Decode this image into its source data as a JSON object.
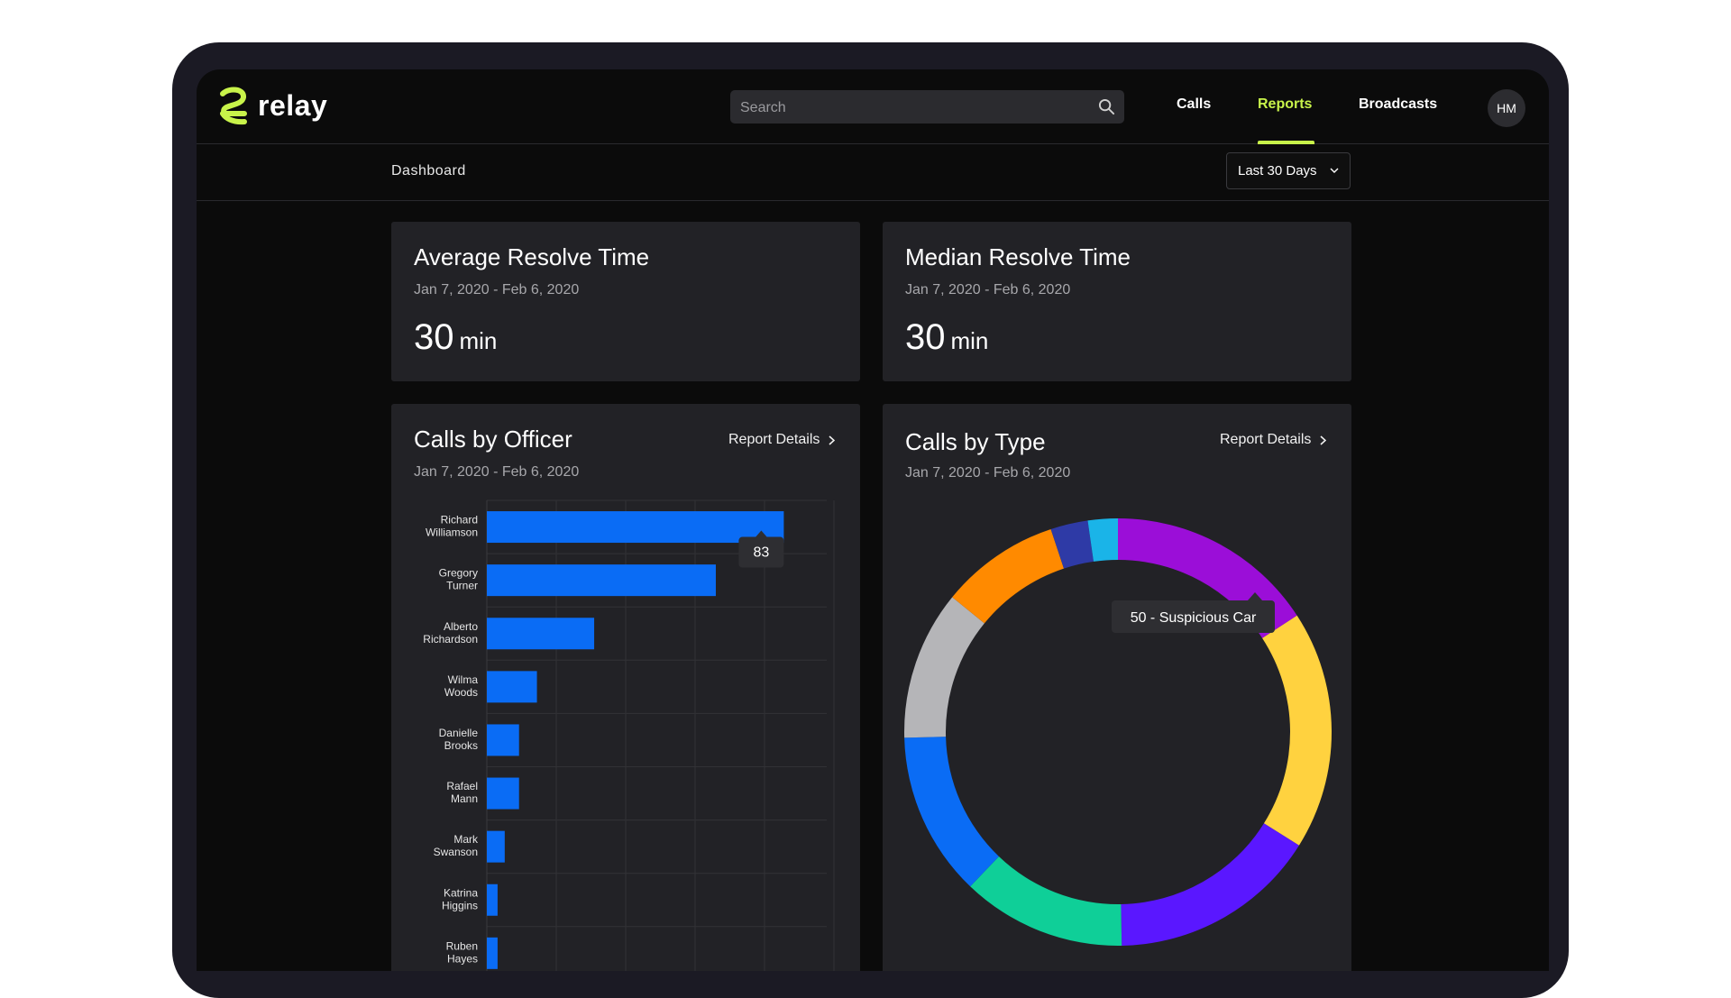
{
  "app": {
    "logo_text": "relay",
    "brand_color": "#c8f34a",
    "search_placeholder": "Search",
    "nav": {
      "calls": "Calls",
      "reports": "Reports",
      "broadcasts": "Broadcasts",
      "active": "reports"
    },
    "avatar_initials": "HM"
  },
  "subnav": {
    "breadcrumb": "Dashboard",
    "range_selected": "Last 30 Days"
  },
  "cards": {
    "avg": {
      "title": "Average Resolve Time",
      "date_range": "Jan 7, 2020 - Feb 6, 2020",
      "value": "30",
      "unit": "min"
    },
    "median": {
      "title": "Median Resolve Time",
      "date_range": "Jan 7, 2020 - Feb 6, 2020",
      "value": "30",
      "unit": "min"
    },
    "officer": {
      "title": "Calls by Officer",
      "date_range": "Jan 7, 2020 - Feb 6, 2020",
      "link": "Report Details"
    },
    "type": {
      "title": "Calls by Type",
      "date_range": "Jan 7, 2020 - Feb 6, 2020",
      "link": "Report Details"
    }
  },
  "chart_data": [
    {
      "type": "bar",
      "orientation": "horizontal",
      "categories": [
        [
          "Richard",
          "Williamson"
        ],
        [
          "Gregory",
          "Turner"
        ],
        [
          "Alberto",
          "Richardson"
        ],
        [
          "Wilma",
          "Woods"
        ],
        [
          "Danielle",
          "Brooks"
        ],
        [
          "Rafael",
          "Mann"
        ],
        [
          "Mark",
          "Swanson"
        ],
        [
          "Katrina",
          "Higgins"
        ],
        [
          "Ruben",
          "Hayes"
        ]
      ],
      "values": [
        83,
        64,
        30,
        14,
        9,
        9,
        5,
        3,
        3
      ],
      "xlim": [
        0,
        95
      ],
      "color": "#0a6cf5",
      "tooltip": {
        "index": 0,
        "text": "83"
      },
      "grid": true
    },
    {
      "type": "pie",
      "donut": true,
      "slices": [
        {
          "value": 14,
          "color": "#9b0ed8"
        },
        {
          "value": 16,
          "color": "#ffd23f"
        },
        {
          "value": 14,
          "color": "#5a17ff"
        },
        {
          "value": 11,
          "color": "#0fcf98"
        },
        {
          "value": 11,
          "color": "#0a6cf5"
        },
        {
          "value": 10,
          "color": "#b5b5b8"
        },
        {
          "value": 8,
          "color": "#ff8a00"
        },
        {
          "value": 2.5,
          "color": "#2e3aa6"
        },
        {
          "value": 2,
          "color": "#1ab4e8"
        }
      ],
      "tooltip": {
        "text": "50 - Suspicious Car"
      }
    }
  ]
}
